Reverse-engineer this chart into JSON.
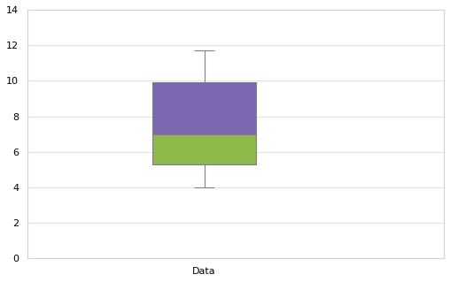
{
  "data_min": 4.0,
  "q1": 5.3,
  "median": 7.0,
  "q3": 9.9,
  "data_max": 11.7,
  "ylim": [
    0.0,
    14.0
  ],
  "yticks": [
    0.0,
    2.0,
    4.0,
    6.0,
    8.0,
    10.0,
    12.0,
    14.0
  ],
  "xlabel": "Data",
  "box_color_upper": "#7B68B0",
  "box_color_lower": "#8DB84A",
  "whisker_color": "#808080",
  "median_color": "#808080",
  "background_color": "#FFFFFF",
  "grid_color": "#D3D3D3"
}
